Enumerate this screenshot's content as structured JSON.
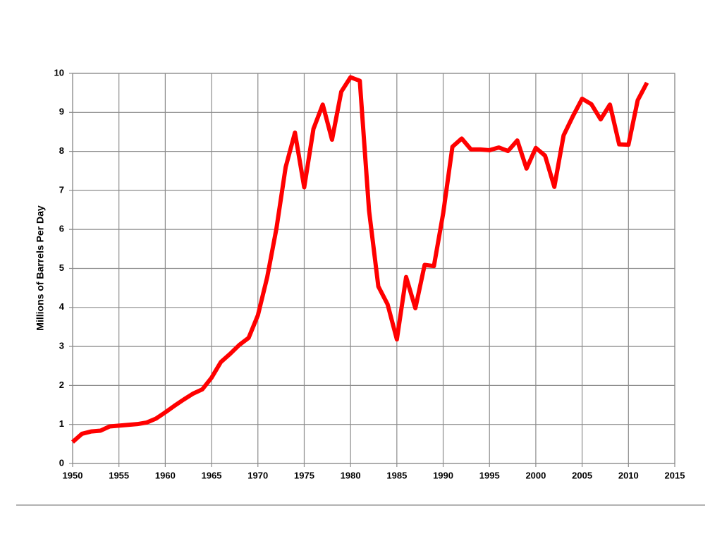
{
  "chart_data": {
    "type": "line",
    "y_label": "Millions of Barrels Per Day",
    "x": [
      1950,
      1951,
      1952,
      1953,
      1954,
      1955,
      1956,
      1957,
      1958,
      1959,
      1960,
      1961,
      1962,
      1963,
      1964,
      1965,
      1966,
      1967,
      1968,
      1969,
      1970,
      1971,
      1972,
      1973,
      1974,
      1975,
      1976,
      1977,
      1978,
      1979,
      1980,
      1981,
      1982,
      1983,
      1984,
      1985,
      1986,
      1987,
      1988,
      1989,
      1990,
      1991,
      1992,
      1993,
      1994,
      1995,
      1996,
      1997,
      1998,
      1999,
      2000,
      2001,
      2002,
      2003,
      2004,
      2005,
      2006,
      2007,
      2008,
      2009,
      2010,
      2011,
      2012
    ],
    "values": [
      0.55,
      0.76,
      0.82,
      0.84,
      0.95,
      0.97,
      0.99,
      1.01,
      1.05,
      1.15,
      1.31,
      1.48,
      1.64,
      1.79,
      1.9,
      2.2,
      2.6,
      2.81,
      3.04,
      3.22,
      3.8,
      4.77,
      6.02,
      7.6,
      8.48,
      7.08,
      8.58,
      9.2,
      8.3,
      9.53,
      9.9,
      9.81,
      6.48,
      4.54,
      4.08,
      3.18,
      4.78,
      3.98,
      5.09,
      5.06,
      6.41,
      8.12,
      8.33,
      8.05,
      8.05,
      8.03,
      8.1,
      8.01,
      8.28,
      7.56,
      8.09,
      7.89,
      7.09,
      8.41,
      8.9,
      9.35,
      9.21,
      8.82,
      9.2,
      8.18,
      8.17,
      9.31,
      9.76
    ],
    "color": "#ff0000",
    "xlim": [
      1950,
      2015
    ],
    "xticks": [
      1950,
      1955,
      1960,
      1965,
      1970,
      1975,
      1980,
      1985,
      1990,
      1995,
      2000,
      2005,
      2010,
      2015
    ],
    "ylim": [
      0,
      10
    ],
    "yticks": [
      0,
      1,
      2,
      3,
      4,
      5,
      6,
      7,
      8,
      9,
      10
    ],
    "grid": true
  }
}
